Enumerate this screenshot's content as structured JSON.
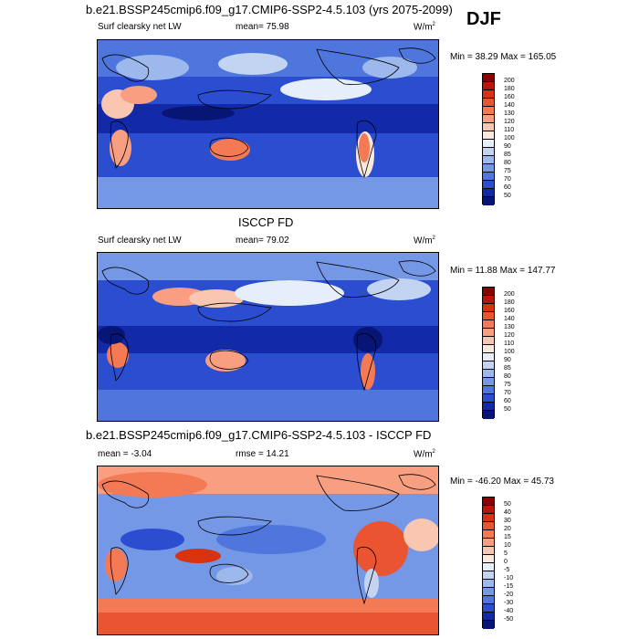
{
  "season": "DJF",
  "panel1": {
    "title": "b.e21.BSSP245cmip6.f09_g17.CMIP6-SSP2-4.5.103 (yrs 2075-2099)",
    "variable": "Surf clearsky net LW",
    "mean": "mean=  75.98",
    "units": "W/m",
    "units_sup": "2",
    "minmax": "Min =  38.29 Max = 165.05"
  },
  "panel2": {
    "title": "ISCCP FD",
    "variable": "Surf clearsky net LW",
    "mean": "mean=  79.02",
    "units": "W/m",
    "units_sup": "2",
    "minmax": "Min =  11.88 Max = 147.77"
  },
  "panel3": {
    "title": "b.e21.BSSP245cmip6.f09_g17.CMIP6-SSP2-4.5.103 - ISCCP FD",
    "mean": "mean =  -3.04",
    "rmse": "rmse =  14.21",
    "units": "W/m",
    "units_sup": "2",
    "minmax": "Min = -46.20 Max =  45.73"
  },
  "colorbar_abs": {
    "labels": [
      "200",
      "180",
      "160",
      "140",
      "130",
      "120",
      "110",
      "100",
      "90",
      "85",
      "80",
      "75",
      "70",
      "60",
      "50"
    ],
    "colors": [
      "#8b0000",
      "#b8160b",
      "#d8330f",
      "#ea5430",
      "#f47a55",
      "#f79f80",
      "#f9c7b1",
      "#fbe8dc",
      "#e6eefa",
      "#c3d4f3",
      "#9db8ec",
      "#7598e6",
      "#4f76dc",
      "#2b4dd0",
      "#1229a8",
      "#071675"
    ]
  },
  "colorbar_diff": {
    "labels": [
      "50",
      "40",
      "30",
      "20",
      "15",
      "10",
      "5",
      "0",
      "-5",
      "-10",
      "-15",
      "-20",
      "-30",
      "-40",
      "-50"
    ],
    "colors": [
      "#8b0000",
      "#b8160b",
      "#d8330f",
      "#ea5430",
      "#f47a55",
      "#f79f80",
      "#f9c7b1",
      "#fbe8dc",
      "#e6eefa",
      "#c3d4f3",
      "#9db8ec",
      "#7598e6",
      "#4f76dc",
      "#2b4dd0",
      "#1229a8",
      "#071675"
    ]
  }
}
